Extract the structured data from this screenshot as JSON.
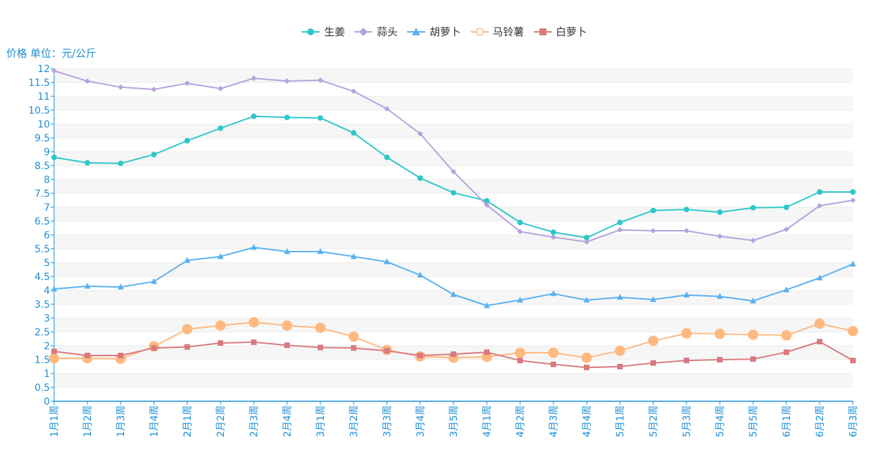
{
  "chart_data": {
    "type": "line",
    "ylabel": "价格 单位：元/公斤",
    "ylim": [
      0,
      12
    ],
    "ytick_step": 0.5,
    "grid": "horizontal-bands",
    "legend_position": "top-center",
    "categories": [
      "1月1周",
      "1月2周",
      "1月3周",
      "1月4周",
      "2月1周",
      "2月2周",
      "2月3周",
      "2月4周",
      "3月1周",
      "3月2周",
      "3月3周",
      "3月4周",
      "3月5周",
      "4月1周",
      "4月2周",
      "4月3周",
      "4月4周",
      "5月1周",
      "5月2周",
      "5月3周",
      "5月4周",
      "5月5周",
      "6月1周",
      "6月2周",
      "6月3周"
    ],
    "yticks": [
      "0",
      "0.5",
      "1",
      "1.5",
      "2",
      "2.5",
      "3",
      "3.5",
      "4",
      "4.5",
      "5",
      "5.5",
      "6",
      "6.5",
      "7",
      "7.5",
      "8",
      "8.5",
      "9",
      "9.5",
      "10",
      "10.5",
      "11",
      "11.5",
      "12"
    ],
    "series": [
      {
        "name": "生姜",
        "color": "#2ec7c9",
        "marker": "circle",
        "values": [
          8.8,
          8.6,
          8.58,
          8.9,
          9.4,
          9.85,
          10.28,
          10.24,
          10.22,
          9.68,
          8.8,
          8.05,
          7.52,
          7.23,
          6.45,
          6.1,
          5.9,
          6.45,
          6.88,
          6.92,
          6.82,
          6.98,
          7.0,
          7.55,
          7.55
        ]
      },
      {
        "name": "蒜头",
        "color": "#b6a2de",
        "marker": "diamond",
        "values": [
          11.92,
          11.55,
          11.33,
          11.25,
          11.47,
          11.28,
          11.65,
          11.55,
          11.58,
          11.18,
          10.55,
          9.65,
          8.28,
          7.08,
          6.12,
          5.92,
          5.75,
          6.18,
          6.15,
          6.15,
          5.95,
          5.8,
          6.2,
          7.05,
          7.25
        ]
      },
      {
        "name": "胡萝卜",
        "color": "#5ab1ef",
        "marker": "triangle",
        "values": [
          4.05,
          4.15,
          4.12,
          4.32,
          5.08,
          5.22,
          5.55,
          5.4,
          5.4,
          5.22,
          5.03,
          4.55,
          3.85,
          3.45,
          3.65,
          3.88,
          3.65,
          3.75,
          3.67,
          3.83,
          3.78,
          3.62,
          4.02,
          4.45,
          4.95
        ]
      },
      {
        "name": "马铃薯",
        "color": "#ffb980",
        "marker": "hollow-circle",
        "values": [
          1.55,
          1.55,
          1.53,
          1.98,
          2.6,
          2.73,
          2.85,
          2.73,
          2.65,
          2.33,
          1.85,
          1.62,
          1.57,
          1.6,
          1.75,
          1.75,
          1.57,
          1.82,
          2.18,
          2.45,
          2.43,
          2.4,
          2.38,
          2.8,
          2.53
        ]
      },
      {
        "name": "白萝卜",
        "color": "#d87a80",
        "marker": "square",
        "values": [
          1.8,
          1.65,
          1.65,
          1.92,
          1.96,
          2.1,
          2.13,
          2.02,
          1.94,
          1.92,
          1.82,
          1.65,
          1.7,
          1.77,
          1.47,
          1.33,
          1.22,
          1.25,
          1.38,
          1.47,
          1.5,
          1.52,
          1.77,
          2.15,
          1.47
        ]
      }
    ]
  }
}
